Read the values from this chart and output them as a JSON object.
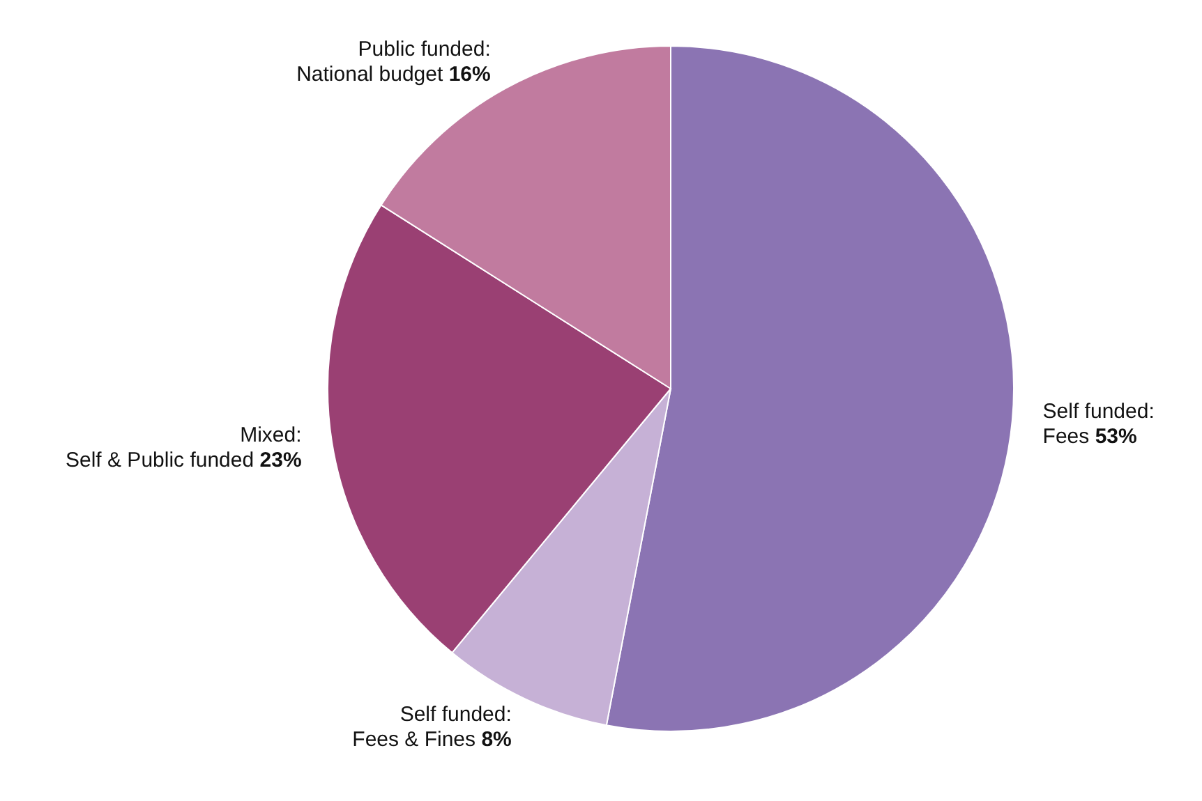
{
  "chart_data": {
    "type": "pie",
    "categories": [
      "Self funded:\nFees",
      "Self funded:\nFees & Fines",
      "Mixed:\nSelf & Public funded",
      "Public funded:\nNational budget"
    ],
    "values": [
      53,
      8,
      23,
      16
    ],
    "value_labels": [
      "53%",
      "8%",
      "23%",
      "16%"
    ],
    "colors": [
      "#8b74b3",
      "#c6b1d6",
      "#9a4073",
      "#c17b9f"
    ],
    "legend": false
  }
}
